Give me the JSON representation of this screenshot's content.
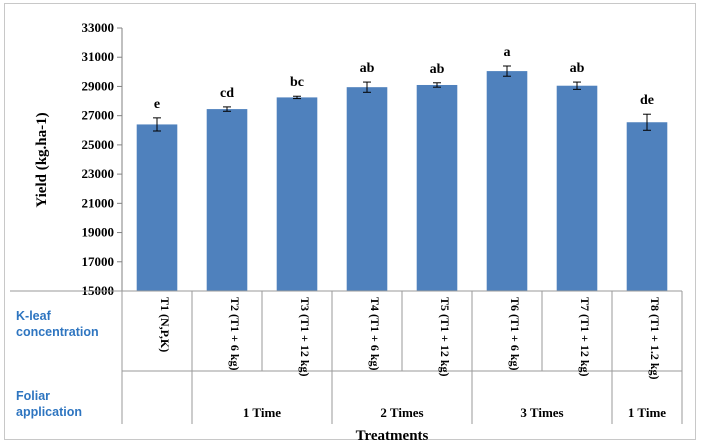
{
  "chart_data": {
    "type": "bar",
    "categories": [
      "T1 (N,P,K)",
      "T2 (T1 + 6 kg)",
      "T3 (T1 + 12 kg)",
      "T4 (T1 + 6 kg)",
      "T5 (T1 + 12 kg)",
      "T6 (T1 + 6 kg)",
      "T7 (T1 + 12 kg)",
      "T8 (T1 + 1.2 kg)"
    ],
    "values": [
      26400,
      27450,
      28250,
      28950,
      29100,
      30050,
      29050,
      26550
    ],
    "errors": [
      450,
      150,
      80,
      350,
      150,
      350,
      250,
      550
    ],
    "significance": [
      "e",
      "cd",
      "bc",
      "ab",
      "ab",
      "a",
      "ab",
      "de"
    ],
    "ylabel": "Yield (kg.ha-1)",
    "xlabel": "Treatments",
    "ylim": [
      15000,
      33000
    ],
    "yticks": [
      15000,
      17000,
      19000,
      21000,
      23000,
      25000,
      27000,
      29000,
      31000,
      33000
    ],
    "bar_color": "#4f81bd",
    "row_labels": {
      "k_leaf": [
        "K-leaf",
        "concentration"
      ],
      "foliar": [
        "Foliar",
        "application"
      ]
    },
    "foliar_groups": [
      {
        "label": "1 Time",
        "from": 1,
        "to": 2
      },
      {
        "label": "2 Times",
        "from": 3,
        "to": 4
      },
      {
        "label": "3 Times",
        "from": 5,
        "to": 6
      },
      {
        "label": "1 Time",
        "from": 7,
        "to": 7
      }
    ]
  }
}
